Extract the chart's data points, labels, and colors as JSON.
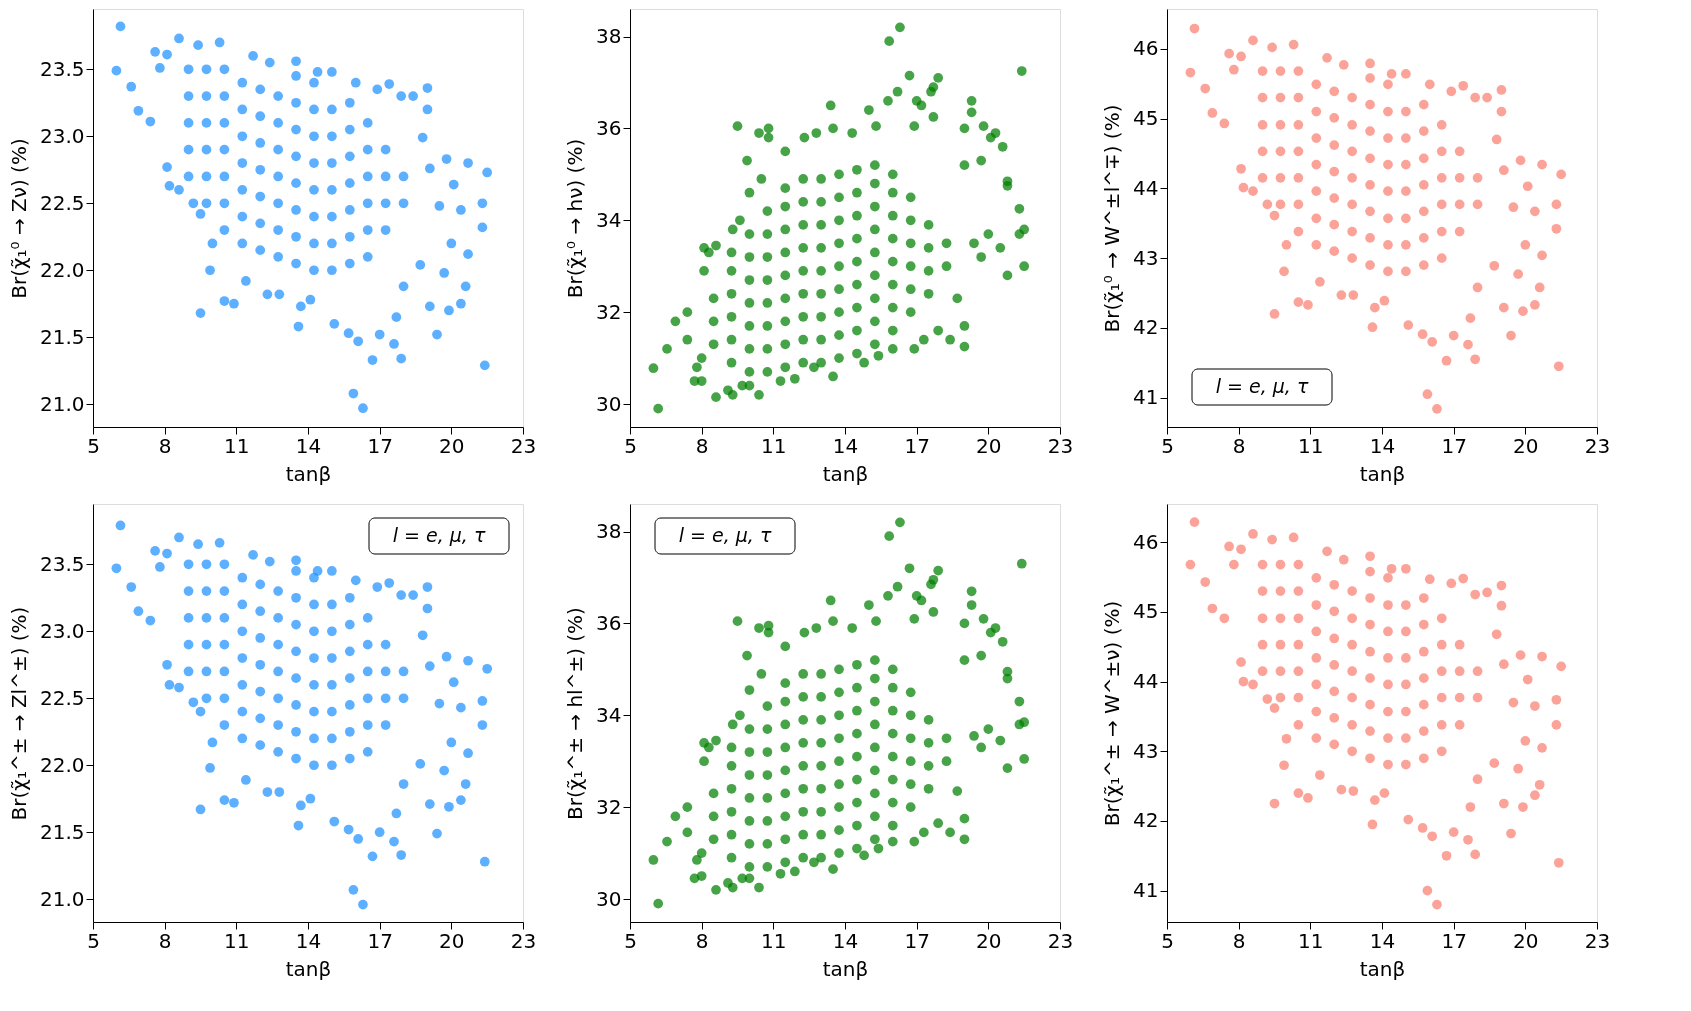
{
  "chart_data": [
    {
      "type": "scatter",
      "xlabel": "tanβ",
      "ylabel": "Br(χ̃₁⁰ → Zν) (%)",
      "marker": "circle",
      "xlim": [
        5,
        23
      ],
      "xticks": [
        5,
        8,
        11,
        14,
        17,
        20,
        23
      ],
      "ylim": [
        20.83,
        23.95
      ],
      "yticks": [
        {
          "value": 21,
          "label": "21.0"
        },
        21.5,
        {
          "value": 22,
          "label": "22.0"
        },
        22.5,
        {
          "value": 23,
          "label": "23.0"
        },
        23.5
      ],
      "series": [
        {
          "color": "#1e90ff",
          "x": [
            5.98,
            6.15,
            6.6,
            6.9,
            7.4,
            7.6,
            7.8,
            8.1,
            8.1,
            8.2,
            8.6,
            8.6,
            9.2,
            9.5,
            9.5,
            9.9,
            10.0,
            10.5,
            10.9,
            11.4,
            12.3,
            12.8,
            13.6,
            13.7,
            14.1,
            15.1,
            15.7,
            16.1,
            15.9,
            16.3,
            16.7,
            17.0,
            17.6,
            17.9,
            17.7,
            18.0,
            18.7,
            19.1,
            19.4,
            19.7,
            19.9,
            20.0,
            20.4,
            20.6,
            20.7,
            21.4,
            21.3,
            21.3,
            21.5,
            20.7,
            20.4,
            20.1,
            19.8,
            19.5,
            19.1,
            19.0,
            19.0,
            18.8,
            18.4,
            17.9,
            17.4,
            16.9,
            16.0,
            15.0,
            14.4,
            13.5,
            12.4,
            11.7,
            10.3,
            9.4,
            9,
            9,
            9,
            9,
            9,
            9.75,
            9.75,
            9.75,
            9.75,
            9.75,
            9.75,
            10.5,
            10.5,
            10.5,
            10.5,
            10.5,
            10.5,
            10.5,
            11.25,
            11.25,
            11.25,
            11.25,
            11.25,
            11.25,
            11.25,
            12,
            12,
            12,
            12,
            12,
            12,
            12,
            12.75,
            12.75,
            12.75,
            12.75,
            12.75,
            12.75,
            12.75,
            13.5,
            13.5,
            13.5,
            13.5,
            13.5,
            13.5,
            13.5,
            13.5,
            14.25,
            14.25,
            14.25,
            14.25,
            14.25,
            14.25,
            14.25,
            14.25,
            15,
            15,
            15,
            15,
            15,
            15,
            15,
            15.75,
            15.75,
            15.75,
            15.75,
            15.75,
            15.75,
            15.75,
            16.5,
            16.5,
            16.5,
            16.5,
            16.5,
            16.5,
            17.25,
            17.25,
            17.25,
            17.25,
            18,
            18
          ],
          "values": [
            23.49,
            23.82,
            23.37,
            23.19,
            23.11,
            23.63,
            23.51,
            23.61,
            22.77,
            22.63,
            23.73,
            22.6,
            22.5,
            22.42,
            21.68,
            22.0,
            22.2,
            21.77,
            21.75,
            21.92,
            21.82,
            21.82,
            21.58,
            21.73,
            21.78,
            21.6,
            21.53,
            21.47,
            21.08,
            20.97,
            21.33,
            21.52,
            21.45,
            21.34,
            21.65,
            21.88,
            22.04,
            21.73,
            21.52,
            21.98,
            21.7,
            22.2,
            21.75,
            21.88,
            22.12,
            21.29,
            22.32,
            22.5,
            22.73,
            22.8,
            22.45,
            22.64,
            22.83,
            22.48,
            22.76,
            23.2,
            23.36,
            22.99,
            23.3,
            23.3,
            23.39,
            23.35,
            23.4,
            23.48,
            23.48,
            23.56,
            23.55,
            23.6,
            23.7,
            23.68,
            22.7,
            22.9,
            23.1,
            23.3,
            23.5,
            22.5,
            22.7,
            22.9,
            23.1,
            23.3,
            23.5,
            22.3,
            22.5,
            22.7,
            22.9,
            23.1,
            23.3,
            23.5,
            22.2,
            22.4,
            22.6,
            22.8,
            23.0,
            23.2,
            23.4,
            22.15,
            22.35,
            22.55,
            22.75,
            22.95,
            23.15,
            23.35,
            22.1,
            22.3,
            22.5,
            22.7,
            22.9,
            23.1,
            23.3,
            22.05,
            22.25,
            22.45,
            22.65,
            22.85,
            23.05,
            23.25,
            23.45,
            22.0,
            22.2,
            22.4,
            22.6,
            22.8,
            23.0,
            23.2,
            23.4,
            22.0,
            22.2,
            22.4,
            22.6,
            22.8,
            23.0,
            23.2,
            22.05,
            22.25,
            22.45,
            22.65,
            22.85,
            23.05,
            23.25,
            22.1,
            22.3,
            22.5,
            22.7,
            22.9,
            23.1,
            22.3,
            22.5,
            22.7,
            22.9,
            22.5,
            22.7
          ]
        }
      ]
    },
    {
      "type": "scatter",
      "xlabel": "tanβ",
      "ylabel": "Br(χ̃₁⁰ → hν) (%)",
      "marker": "circle",
      "xlim": [
        5,
        23
      ],
      "xticks": [
        5,
        8,
        11,
        14,
        17,
        20,
        23
      ],
      "ylim": [
        29.5,
        38.6
      ],
      "yticks": [
        30,
        32,
        34,
        36,
        38
      ],
      "series": [
        {
          "color": "#008000",
          "x": [
            5.98,
            6.18,
            6.55,
            6.9,
            7.4,
            7.4,
            7.7,
            7.8,
            8.0,
            8.0,
            8.1,
            8.1,
            8.3,
            8.6,
            8.6,
            9.1,
            9.3,
            9.3,
            9.5,
            9.6,
            9.9,
            10.0,
            10.4,
            10.4,
            10.8,
            10.8,
            10.5,
            11.5,
            12.3,
            12.8,
            13.4,
            13.5,
            14.3,
            15.0,
            15.3,
            15.8,
            15.85,
            16.3,
            16.2,
            16.7,
            17.0,
            17.2,
            17.6,
            17.7,
            17.9,
            17.7,
            16.9,
            19.0,
            19.3,
            19.3,
            19.8,
            20.1,
            20.3,
            20.6,
            21.4,
            19.7,
            19.0,
            20.8,
            20.8,
            21.3,
            21.5,
            21.3,
            21.5,
            20.8,
            20.5,
            20.0,
            19.7,
            19.4,
            18.7,
            19.0,
            19.0,
            18.4,
            17.9,
            17.3,
            16.9,
            16.0,
            15.4,
            14.8,
            13.5,
            12.7,
            11.9,
            11.3,
            10.0,
            9.7,
            8.5,
            8.5,
            8.5,
            9.25,
            9.25,
            9.25,
            9.25,
            9.25,
            9.25,
            10,
            10,
            10,
            10,
            10,
            10,
            10,
            10.75,
            10.75,
            10.75,
            10.75,
            10.75,
            10.75,
            10.75,
            10.75,
            11.5,
            11.5,
            11.5,
            11.5,
            11.5,
            11.5,
            11.5,
            11.5,
            11.5,
            12.25,
            12.25,
            12.25,
            12.25,
            12.25,
            12.25,
            12.25,
            12.25,
            12.25,
            13,
            13,
            13,
            13,
            13,
            13,
            13,
            13,
            13,
            13.75,
            13.75,
            13.75,
            13.75,
            13.75,
            13.75,
            13.75,
            13.75,
            13.75,
            14.5,
            14.5,
            14.5,
            14.5,
            14.5,
            14.5,
            14.5,
            14.5,
            14.5,
            15.25,
            15.25,
            15.25,
            15.25,
            15.25,
            15.25,
            15.25,
            15.25,
            15.25,
            16,
            16,
            16,
            16,
            16,
            16,
            16,
            16,
            16.75,
            16.75,
            16.75,
            16.75,
            16.75,
            16.75,
            17.5,
            17.5,
            17.5,
            17.5,
            18.25,
            18.25
          ],
          "values": [
            30.78,
            29.9,
            31.2,
            31.8,
            32.0,
            31.4,
            30.5,
            30.8,
            30.5,
            31.0,
            32.9,
            33.4,
            33.3,
            30.15,
            33.45,
            30.3,
            30.2,
            33.8,
            36.05,
            34.0,
            35.3,
            34.6,
            30.2,
            35.9,
            35.8,
            36.0,
            34.9,
            35.5,
            35.8,
            35.9,
            36.5,
            36.0,
            35.9,
            36.4,
            36.05,
            36.6,
            37.9,
            38.2,
            36.8,
            37.15,
            36.6,
            36.5,
            36.8,
            36.9,
            37.1,
            36.25,
            36.05,
            36.0,
            36.6,
            36.35,
            36.05,
            35.8,
            35.9,
            35.6,
            37.25,
            35.3,
            35.2,
            34.85,
            34.75,
            34.25,
            33.8,
            33.7,
            33.0,
            32.8,
            33.4,
            33.7,
            33.2,
            33.5,
            32.3,
            31.7,
            31.25,
            31.4,
            31.6,
            31.4,
            31.2,
            31.2,
            31.05,
            30.9,
            30.6,
            30.8,
            30.55,
            30.5,
            30.4,
            30.4,
            31.3,
            31.8,
            32.3,
            30.9,
            31.4,
            31.9,
            32.4,
            32.9,
            33.3,
            30.7,
            31.2,
            31.7,
            32.2,
            32.7,
            33.2,
            33.7,
            30.7,
            31.2,
            31.7,
            32.2,
            32.7,
            33.2,
            33.7,
            34.2,
            30.8,
            31.3,
            31.8,
            32.3,
            32.8,
            33.3,
            33.8,
            34.3,
            34.7,
            30.9,
            31.4,
            31.9,
            32.4,
            32.9,
            33.4,
            33.9,
            34.4,
            34.9,
            30.9,
            31.4,
            31.9,
            32.4,
            32.9,
            33.4,
            33.9,
            34.4,
            34.9,
            31.0,
            31.5,
            32.0,
            32.5,
            33.0,
            33.5,
            34.0,
            34.5,
            35.0,
            31.1,
            31.6,
            32.1,
            32.6,
            33.1,
            33.6,
            34.1,
            34.6,
            35.1,
            31.3,
            31.8,
            32.3,
            32.8,
            33.3,
            33.8,
            34.3,
            34.8,
            35.2,
            31.6,
            32.1,
            32.6,
            33.1,
            33.6,
            34.1,
            34.6,
            35.0,
            32.0,
            32.5,
            33.0,
            33.5,
            34.0,
            34.5,
            32.4,
            32.9,
            33.4,
            33.9,
            33.0,
            33.5
          ]
        }
      ]
    },
    {
      "type": "scatter",
      "xlabel": "tanβ",
      "ylabel": "Br(χ̃₁⁰ → W^±l^∓) (%)",
      "annotations": [
        "l = e, μ, τ"
      ],
      "marker": "circle",
      "xlim": [
        5,
        23
      ],
      "xticks": [
        5,
        8,
        11,
        14,
        17,
        20,
        23
      ],
      "ylim": [
        40.58,
        46.57
      ],
      "yticks": [
        41,
        42,
        43,
        44,
        45,
        46
      ],
      "series": [
        {
          "color": "#fa8072",
          "x": [
            5.98,
            6.15,
            6.6,
            6.9,
            7.4,
            7.6,
            7.8,
            8.1,
            8.1,
            8.2,
            8.6,
            8.6,
            9.2,
            9.5,
            9.5,
            9.9,
            10.0,
            10.5,
            10.9,
            11.4,
            12.3,
            12.8,
            13.6,
            13.7,
            14.1,
            15.1,
            15.7,
            16.1,
            15.9,
            16.3,
            16.7,
            17.0,
            17.6,
            17.9,
            17.7,
            18.0,
            18.7,
            19.1,
            19.4,
            19.7,
            19.9,
            20.0,
            20.4,
            20.6,
            20.7,
            21.4,
            21.3,
            21.3,
            21.5,
            20.7,
            20.4,
            20.1,
            19.8,
            19.5,
            19.1,
            19.0,
            19.0,
            18.8,
            18.4,
            17.9,
            17.4,
            16.9,
            16.0,
            15.0,
            14.4,
            13.5,
            12.4,
            11.7,
            10.3,
            9.4,
            9,
            9,
            9,
            9,
            9,
            9.75,
            9.75,
            9.75,
            9.75,
            9.75,
            9.75,
            10.5,
            10.5,
            10.5,
            10.5,
            10.5,
            10.5,
            10.5,
            11.25,
            11.25,
            11.25,
            11.25,
            11.25,
            11.25,
            11.25,
            12,
            12,
            12,
            12,
            12,
            12,
            12,
            12.75,
            12.75,
            12.75,
            12.75,
            12.75,
            12.75,
            12.75,
            13.5,
            13.5,
            13.5,
            13.5,
            13.5,
            13.5,
            13.5,
            13.5,
            14.25,
            14.25,
            14.25,
            14.25,
            14.25,
            14.25,
            14.25,
            14.25,
            15,
            15,
            15,
            15,
            15,
            15,
            15,
            15.75,
            15.75,
            15.75,
            15.75,
            15.75,
            15.75,
            15.75,
            16.5,
            16.5,
            16.5,
            16.5,
            16.5,
            16.5,
            17.25,
            17.25,
            17.25,
            17.25,
            18,
            18
          ],
          "values": [
            45.66,
            46.29,
            45.43,
            45.08,
            44.93,
            45.93,
            45.7,
            45.89,
            44.28,
            44.01,
            46.12,
            43.96,
            43.77,
            43.61,
            42.2,
            42.81,
            43.19,
            42.37,
            42.33,
            42.66,
            42.47,
            42.47,
            42.01,
            42.29,
            42.39,
            42.04,
            41.91,
            41.8,
            41.05,
            40.84,
            41.53,
            41.89,
            41.76,
            41.55,
            42.14,
            42.58,
            42.89,
            42.29,
            41.89,
            42.77,
            42.24,
            43.19,
            42.33,
            42.58,
            43.04,
            41.45,
            43.42,
            43.77,
            44.2,
            44.34,
            43.67,
            44.03,
            44.4,
            43.73,
            44.26,
            45.1,
            45.41,
            44.7,
            45.3,
            45.3,
            45.47,
            45.39,
            45.49,
            45.64,
            45.64,
            45.79,
            45.77,
            45.87,
            46.06,
            46.02,
            44.15,
            44.53,
            44.91,
            45.3,
            45.68,
            43.77,
            44.15,
            44.53,
            44.91,
            45.3,
            45.68,
            43.38,
            43.77,
            44.15,
            44.53,
            44.91,
            45.3,
            45.68,
            43.19,
            43.57,
            43.96,
            44.34,
            44.72,
            45.1,
            45.49,
            43.1,
            43.48,
            43.86,
            44.24,
            44.62,
            45.01,
            45.39,
            43.0,
            43.38,
            43.77,
            44.15,
            44.53,
            44.91,
            45.3,
            42.9,
            43.29,
            43.67,
            44.05,
            44.43,
            44.82,
            45.2,
            45.58,
            42.81,
            43.19,
            43.57,
            43.96,
            44.34,
            44.72,
            45.1,
            45.49,
            42.81,
            43.19,
            43.57,
            43.96,
            44.34,
            44.72,
            45.1,
            42.9,
            43.29,
            43.67,
            44.05,
            44.43,
            44.82,
            45.2,
            43.0,
            43.38,
            43.77,
            44.15,
            44.53,
            44.91,
            43.38,
            43.77,
            44.15,
            44.53,
            43.77,
            44.15
          ]
        }
      ]
    },
    {
      "type": "scatter",
      "xlabel": "tanβ",
      "ylabel": "Br(χ̃₁^± → Zl^±) (%)",
      "annotations": [
        "l = e, μ, τ"
      ],
      "marker": "circle",
      "xlim": [
        5,
        23
      ],
      "xticks": [
        5,
        8,
        11,
        14,
        17,
        20,
        23
      ],
      "ylim": [
        20.83,
        23.95
      ],
      "yticks": [
        {
          "value": 21,
          "label": "21.0"
        },
        21.5,
        {
          "value": 22,
          "label": "22.0"
        },
        22.5,
        {
          "value": 23,
          "label": "23.0"
        },
        23.5
      ],
      "series": [
        {
          "color": "#1e90ff",
          "x": [
            5.98,
            6.15,
            6.6,
            6.9,
            7.4,
            7.6,
            7.8,
            8.1,
            8.1,
            8.2,
            8.6,
            8.6,
            9.2,
            9.5,
            9.5,
            9.9,
            10.0,
            10.5,
            10.9,
            11.4,
            12.3,
            12.8,
            13.6,
            13.7,
            14.1,
            15.1,
            15.7,
            16.1,
            15.9,
            16.3,
            16.7,
            17.0,
            17.6,
            17.9,
            17.7,
            18.0,
            18.7,
            19.1,
            19.4,
            19.7,
            19.9,
            20.0,
            20.4,
            20.6,
            20.7,
            21.4,
            21.3,
            21.3,
            21.5,
            20.7,
            20.4,
            20.1,
            19.8,
            19.5,
            19.1,
            19.0,
            19.0,
            18.8,
            18.4,
            17.9,
            17.4,
            16.9,
            16.0,
            15.0,
            14.4,
            13.5,
            12.4,
            11.7,
            10.3,
            9.4,
            9,
            9,
            9,
            9,
            9,
            9.75,
            9.75,
            9.75,
            9.75,
            9.75,
            9.75,
            10.5,
            10.5,
            10.5,
            10.5,
            10.5,
            10.5,
            10.5,
            11.25,
            11.25,
            11.25,
            11.25,
            11.25,
            11.25,
            11.25,
            12,
            12,
            12,
            12,
            12,
            12,
            12,
            12.75,
            12.75,
            12.75,
            12.75,
            12.75,
            12.75,
            12.75,
            13.5,
            13.5,
            13.5,
            13.5,
            13.5,
            13.5,
            13.5,
            13.5,
            14.25,
            14.25,
            14.25,
            14.25,
            14.25,
            14.25,
            14.25,
            14.25,
            15,
            15,
            15,
            15,
            15,
            15,
            15,
            15.75,
            15.75,
            15.75,
            15.75,
            15.75,
            15.75,
            15.75,
            16.5,
            16.5,
            16.5,
            16.5,
            16.5,
            16.5,
            17.25,
            17.25,
            17.25,
            17.25,
            18,
            18
          ],
          "values": [
            23.47,
            23.79,
            23.33,
            23.15,
            23.08,
            23.6,
            23.48,
            23.58,
            22.75,
            22.6,
            23.7,
            22.58,
            22.47,
            22.4,
            21.67,
            21.98,
            22.17,
            21.74,
            21.72,
            21.89,
            21.8,
            21.8,
            21.55,
            21.7,
            21.75,
            21.58,
            21.52,
            21.45,
            21.07,
            20.96,
            21.32,
            21.5,
            21.43,
            21.33,
            21.64,
            21.86,
            22.01,
            21.71,
            21.49,
            21.96,
            21.69,
            22.17,
            21.74,
            21.86,
            22.09,
            21.28,
            22.3,
            22.48,
            22.72,
            22.78,
            22.43,
            22.62,
            22.81,
            22.46,
            22.74,
            23.17,
            23.33,
            22.97,
            23.27,
            23.27,
            23.36,
            23.33,
            23.38,
            23.45,
            23.45,
            23.53,
            23.52,
            23.57,
            23.66,
            23.65,
            22.7,
            22.9,
            23.1,
            23.3,
            23.5,
            22.5,
            22.7,
            22.9,
            23.1,
            23.3,
            23.5,
            22.3,
            22.5,
            22.7,
            22.9,
            23.1,
            23.3,
            23.5,
            22.2,
            22.4,
            22.6,
            22.8,
            23.0,
            23.2,
            23.4,
            22.15,
            22.35,
            22.55,
            22.75,
            22.95,
            23.15,
            23.35,
            22.1,
            22.3,
            22.5,
            22.7,
            22.9,
            23.1,
            23.3,
            22.05,
            22.25,
            22.45,
            22.65,
            22.85,
            23.05,
            23.25,
            23.45,
            22.0,
            22.2,
            22.4,
            22.6,
            22.8,
            23.0,
            23.2,
            23.4,
            22.0,
            22.2,
            22.4,
            22.6,
            22.8,
            23.0,
            23.2,
            22.05,
            22.25,
            22.45,
            22.65,
            22.85,
            23.05,
            23.25,
            22.1,
            22.3,
            22.5,
            22.7,
            22.9,
            23.1,
            22.3,
            22.5,
            22.7,
            22.9,
            22.5,
            22.7
          ]
        }
      ]
    },
    {
      "type": "scatter",
      "xlabel": "tanβ",
      "ylabel": "Br(χ̃₁^± → hl^±) (%)",
      "annotations": [
        "l = e, μ, τ"
      ],
      "marker": "circle",
      "xlim": [
        5,
        23
      ],
      "xticks": [
        5,
        8,
        11,
        14,
        17,
        20,
        23
      ],
      "ylim": [
        29.5,
        38.6
      ],
      "yticks": [
        30,
        32,
        34,
        36,
        38
      ],
      "series": [
        {
          "color": "#008000",
          "x": [
            5.98,
            6.18,
            6.55,
            6.9,
            7.4,
            7.4,
            7.7,
            7.8,
            8.0,
            8.0,
            8.1,
            8.1,
            8.3,
            8.6,
            8.6,
            9.1,
            9.3,
            9.3,
            9.5,
            9.6,
            9.9,
            10.0,
            10.4,
            10.4,
            10.8,
            10.8,
            10.5,
            11.5,
            12.3,
            12.8,
            13.4,
            13.5,
            14.3,
            15.0,
            15.3,
            15.8,
            15.85,
            16.3,
            16.2,
            16.7,
            17.0,
            17.2,
            17.6,
            17.7,
            17.9,
            17.7,
            16.9,
            19.0,
            19.3,
            19.3,
            19.8,
            20.1,
            20.3,
            20.6,
            21.4,
            19.7,
            19.0,
            20.8,
            20.8,
            21.3,
            21.5,
            21.3,
            21.5,
            20.8,
            20.5,
            20.0,
            19.7,
            19.4,
            18.7,
            19.0,
            19.0,
            18.4,
            17.9,
            17.3,
            16.9,
            16.0,
            15.4,
            14.8,
            13.5,
            12.7,
            11.9,
            11.3,
            10.0,
            9.7,
            8.5,
            8.5,
            8.5,
            9.25,
            9.25,
            9.25,
            9.25,
            9.25,
            9.25,
            10,
            10,
            10,
            10,
            10,
            10,
            10,
            10.75,
            10.75,
            10.75,
            10.75,
            10.75,
            10.75,
            10.75,
            10.75,
            11.5,
            11.5,
            11.5,
            11.5,
            11.5,
            11.5,
            11.5,
            11.5,
            11.5,
            12.25,
            12.25,
            12.25,
            12.25,
            12.25,
            12.25,
            12.25,
            12.25,
            12.25,
            13,
            13,
            13,
            13,
            13,
            13,
            13,
            13,
            13,
            13.75,
            13.75,
            13.75,
            13.75,
            13.75,
            13.75,
            13.75,
            13.75,
            13.75,
            14.5,
            14.5,
            14.5,
            14.5,
            14.5,
            14.5,
            14.5,
            14.5,
            14.5,
            15.25,
            15.25,
            15.25,
            15.25,
            15.25,
            15.25,
            15.25,
            15.25,
            15.25,
            16,
            16,
            16,
            16,
            16,
            16,
            16,
            16,
            16.75,
            16.75,
            16.75,
            16.75,
            16.75,
            16.75,
            17.5,
            17.5,
            17.5,
            17.5,
            18.25,
            18.25
          ],
          "values": [
            30.85,
            29.9,
            31.25,
            31.8,
            32.0,
            31.45,
            30.45,
            30.85,
            30.5,
            31.0,
            33.0,
            33.4,
            33.3,
            30.2,
            33.45,
            30.35,
            30.25,
            33.8,
            36.05,
            34.0,
            35.3,
            34.55,
            30.25,
            35.9,
            35.8,
            35.95,
            34.9,
            35.5,
            35.8,
            35.9,
            36.5,
            36.05,
            35.9,
            36.4,
            36.05,
            36.6,
            37.9,
            38.2,
            36.8,
            37.2,
            36.6,
            36.5,
            36.85,
            36.95,
            37.15,
            36.25,
            36.1,
            36.0,
            36.7,
            36.4,
            36.1,
            35.8,
            35.9,
            35.6,
            37.3,
            35.3,
            35.2,
            34.95,
            34.8,
            34.3,
            33.85,
            33.8,
            33.05,
            32.85,
            33.45,
            33.7,
            33.3,
            33.55,
            32.35,
            31.75,
            31.3,
            31.45,
            31.65,
            31.45,
            31.25,
            31.25,
            31.1,
            30.95,
            30.65,
            30.8,
            30.6,
            30.55,
            30.45,
            30.45,
            31.3,
            31.8,
            32.3,
            30.9,
            31.4,
            31.9,
            32.4,
            32.9,
            33.3,
            30.7,
            31.2,
            31.7,
            32.2,
            32.7,
            33.2,
            33.7,
            30.7,
            31.2,
            31.7,
            32.2,
            32.7,
            33.2,
            33.7,
            34.2,
            30.8,
            31.3,
            31.8,
            32.3,
            32.8,
            33.3,
            33.8,
            34.3,
            34.7,
            30.9,
            31.4,
            31.9,
            32.4,
            32.9,
            33.4,
            33.9,
            34.4,
            34.9,
            30.9,
            31.4,
            31.9,
            32.4,
            32.9,
            33.4,
            33.9,
            34.4,
            34.9,
            31.0,
            31.5,
            32.0,
            32.5,
            33.0,
            33.5,
            34.0,
            34.5,
            35.0,
            31.1,
            31.6,
            32.1,
            32.6,
            33.1,
            33.6,
            34.1,
            34.6,
            35.1,
            31.3,
            31.8,
            32.3,
            32.8,
            33.3,
            33.8,
            34.3,
            34.8,
            35.2,
            31.6,
            32.1,
            32.6,
            33.1,
            33.6,
            34.1,
            34.6,
            35.0,
            32.0,
            32.5,
            33.0,
            33.5,
            34.0,
            34.5,
            32.4,
            32.9,
            33.4,
            33.9,
            33.0,
            33.5
          ]
        }
      ]
    },
    {
      "type": "scatter",
      "xlabel": "tanβ",
      "ylabel": "Br(χ̃₁^± → W^±ν) (%)",
      "marker": "circle",
      "xlim": [
        5,
        23
      ],
      "xticks": [
        5,
        8,
        11,
        14,
        17,
        20,
        23
      ],
      "ylim": [
        40.55,
        46.55
      ],
      "yticks": [
        41,
        42,
        43,
        44,
        45,
        46
      ],
      "series": [
        {
          "color": "#fa8072",
          "x": [
            5.98,
            6.15,
            6.6,
            6.9,
            7.4,
            7.6,
            7.8,
            8.1,
            8.1,
            8.2,
            8.6,
            8.6,
            9.2,
            9.5,
            9.5,
            9.9,
            10.0,
            10.5,
            10.9,
            11.4,
            12.3,
            12.8,
            13.6,
            13.7,
            14.1,
            15.1,
            15.7,
            16.1,
            15.9,
            16.3,
            16.7,
            17.0,
            17.6,
            17.9,
            17.7,
            18.0,
            18.7,
            19.1,
            19.4,
            19.7,
            19.9,
            20.0,
            20.4,
            20.6,
            20.7,
            21.4,
            21.3,
            21.3,
            21.5,
            20.7,
            20.4,
            20.1,
            19.8,
            19.5,
            19.1,
            19.0,
            19.0,
            18.8,
            18.4,
            17.9,
            17.4,
            16.9,
            16.0,
            15.0,
            14.4,
            13.5,
            12.4,
            11.7,
            10.3,
            9.4,
            9,
            9,
            9,
            9,
            9,
            9.75,
            9.75,
            9.75,
            9.75,
            9.75,
            9.75,
            10.5,
            10.5,
            10.5,
            10.5,
            10.5,
            10.5,
            10.5,
            11.25,
            11.25,
            11.25,
            11.25,
            11.25,
            11.25,
            11.25,
            12,
            12,
            12,
            12,
            12,
            12,
            12,
            12.75,
            12.75,
            12.75,
            12.75,
            12.75,
            12.75,
            12.75,
            13.5,
            13.5,
            13.5,
            13.5,
            13.5,
            13.5,
            13.5,
            13.5,
            14.25,
            14.25,
            14.25,
            14.25,
            14.25,
            14.25,
            14.25,
            14.25,
            15,
            15,
            15,
            15,
            15,
            15,
            15,
            15.75,
            15.75,
            15.75,
            15.75,
            15.75,
            15.75,
            15.75,
            16.5,
            16.5,
            16.5,
            16.5,
            16.5,
            16.5,
            17.25,
            17.25,
            17.25,
            17.25,
            18,
            18
          ],
          "values": [
            45.68,
            46.29,
            45.43,
            45.05,
            44.91,
            45.94,
            45.68,
            45.9,
            44.28,
            44.0,
            46.12,
            43.96,
            43.75,
            43.62,
            42.25,
            42.8,
            43.18,
            42.4,
            42.33,
            42.66,
            42.45,
            42.43,
            41.95,
            42.3,
            42.4,
            42.02,
            41.9,
            41.78,
            41.0,
            40.8,
            41.5,
            41.84,
            41.73,
            41.52,
            42.2,
            42.6,
            42.83,
            42.25,
            41.82,
            42.75,
            42.2,
            43.15,
            42.37,
            42.52,
            43.05,
            41.4,
            43.38,
            43.74,
            44.22,
            44.36,
            43.65,
            44.03,
            44.38,
            43.7,
            44.25,
            45.09,
            45.38,
            44.68,
            45.28,
            45.25,
            45.48,
            45.41,
            45.47,
            45.62,
            45.62,
            45.8,
            45.75,
            45.87,
            46.07,
            46.04,
            44.15,
            44.53,
            44.91,
            45.3,
            45.68,
            43.77,
            44.15,
            44.53,
            44.91,
            45.3,
            45.68,
            43.38,
            43.77,
            44.15,
            44.53,
            44.91,
            45.3,
            45.68,
            43.19,
            43.57,
            43.96,
            44.34,
            44.72,
            45.1,
            45.49,
            43.1,
            43.48,
            43.86,
            44.24,
            44.62,
            45.01,
            45.39,
            43.0,
            43.38,
            43.77,
            44.15,
            44.53,
            44.91,
            45.3,
            42.9,
            43.29,
            43.67,
            44.05,
            44.43,
            44.82,
            45.2,
            45.58,
            42.81,
            43.19,
            43.57,
            43.96,
            44.34,
            44.72,
            45.1,
            45.49,
            42.81,
            43.19,
            43.57,
            43.96,
            44.34,
            44.72,
            45.1,
            42.9,
            43.29,
            43.67,
            44.05,
            44.43,
            44.82,
            45.2,
            43.0,
            43.38,
            43.77,
            44.15,
            44.53,
            44.91,
            43.38,
            43.77,
            44.15,
            44.53,
            43.77,
            44.15
          ]
        }
      ]
    }
  ]
}
